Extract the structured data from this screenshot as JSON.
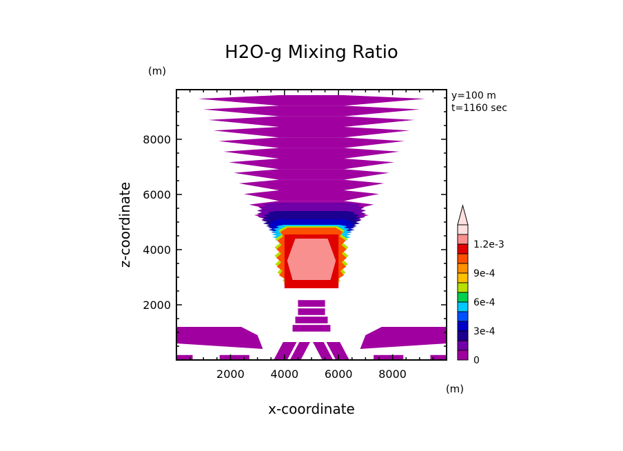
{
  "chart_data": {
    "type": "heatmap",
    "title": "H2O-g Mixing Ratio",
    "xlabel": "x-coordinate",
    "ylabel": "z-coordinate",
    "x_unit": "(m)",
    "y_unit": "(m)",
    "info": [
      "y=100  m",
      "t=1160  sec"
    ],
    "xlim": [
      0,
      10000
    ],
    "ylim": [
      0,
      9800
    ],
    "xticks": [
      2000,
      4000,
      6000,
      8000
    ],
    "yticks": [
      2000,
      4000,
      6000,
      8000
    ],
    "colorbar": {
      "min": 0,
      "max": 0.0013,
      "step": 0.0001,
      "extend": "max",
      "labels": [
        {
          "value": 0,
          "text": "0"
        },
        {
          "value": 0.0003,
          "text": "3e-4"
        },
        {
          "value": 0.0006,
          "text": "6e-4"
        },
        {
          "value": 0.0009,
          "text": "9e-4"
        },
        {
          "value": 0.0012,
          "text": "1.2e-3"
        }
      ],
      "colors": [
        "#a000a0",
        "#7000a8",
        "#1c0090",
        "#0000c8",
        "#0050ff",
        "#00c8ff",
        "#00d050",
        "#b8e000",
        "#ffc000",
        "#ff9000",
        "#ff5000",
        "#e00000",
        "#f89090",
        "#ffe0e0"
      ]
    },
    "regions": [
      {
        "name": "upper plume",
        "x_range": [
          800,
          9200
        ],
        "z_range": [
          5000,
          9600
        ],
        "value": 2e-05
      },
      {
        "name": "cloud core",
        "x_range": [
          3800,
          6200
        ],
        "z_range": [
          2600,
          4800
        ],
        "value": 0.0012
      },
      {
        "name": "core maximum",
        "x_range": [
          4100,
          5900
        ],
        "z_range": [
          2900,
          4400
        ],
        "value": 0.00125
      },
      {
        "name": "near-surface left band",
        "x_range": [
          0,
          3000
        ],
        "z_range": [
          600,
          1200
        ],
        "value": 2e-05
      },
      {
        "name": "near-surface right band",
        "x_range": [
          7000,
          10000
        ],
        "z_range": [
          600,
          1200
        ],
        "value": 2e-05
      }
    ]
  }
}
